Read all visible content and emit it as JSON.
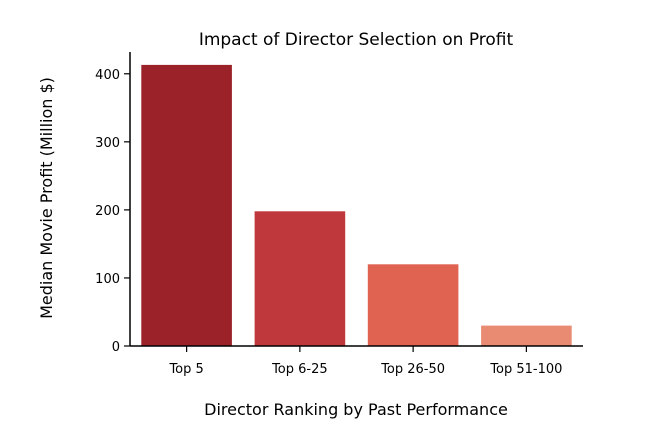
{
  "chart_data": {
    "type": "bar",
    "title": "Impact of Director Selection on Profit",
    "xlabel": "Director Ranking by Past Performance",
    "ylabel": "Median Movie Profit (Million $)",
    "categories": [
      "Top 5",
      "Top 6-25",
      "Top 26-50",
      "Top 51-100"
    ],
    "values": [
      413,
      198,
      120,
      30
    ],
    "colors": [
      "#9b2229",
      "#bf383b",
      "#e06352",
      "#e98b73"
    ],
    "ylim": [
      0,
      432
    ],
    "yticks": [
      0,
      100,
      200,
      300,
      400
    ],
    "grid": false,
    "legend": false
  }
}
